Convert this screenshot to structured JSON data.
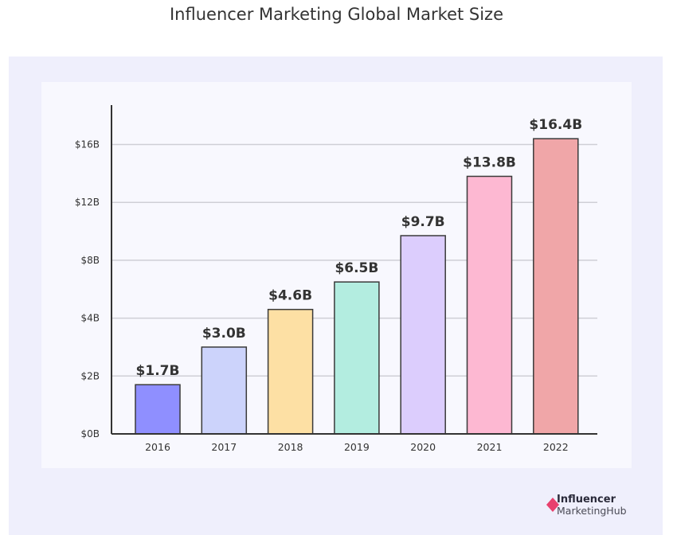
{
  "chart_data": {
    "type": "bar",
    "title": "Influencer Marketing Global Market Size",
    "categories": [
      "2016",
      "2017",
      "2018",
      "2019",
      "2020",
      "2021",
      "2022"
    ],
    "values": [
      1.7,
      3.0,
      4.6,
      6.5,
      9.7,
      13.8,
      16.4
    ],
    "data_labels": [
      "$1.7B",
      "$3.0B",
      "$4.6B",
      "$6.5B",
      "$9.7B",
      "$13.8B",
      "$16.4B"
    ],
    "colors": [
      "#8f8fff",
      "#ccd3fb",
      "#fde0a4",
      "#b3ede0",
      "#dccdfd",
      "#fdb8d2",
      "#f0a6a8"
    ],
    "yticks": [
      0,
      2,
      4,
      8,
      12,
      16
    ],
    "ytick_labels": [
      "$0B",
      "$2B",
      "$4B",
      "$8B",
      "$12B",
      "$16B"
    ],
    "xlabel": "",
    "ylabel": "",
    "grid": true,
    "legend": "none"
  },
  "brand": {
    "line1": "Influencer",
    "line2": "MarketingHub",
    "accent": "#e8406e"
  }
}
